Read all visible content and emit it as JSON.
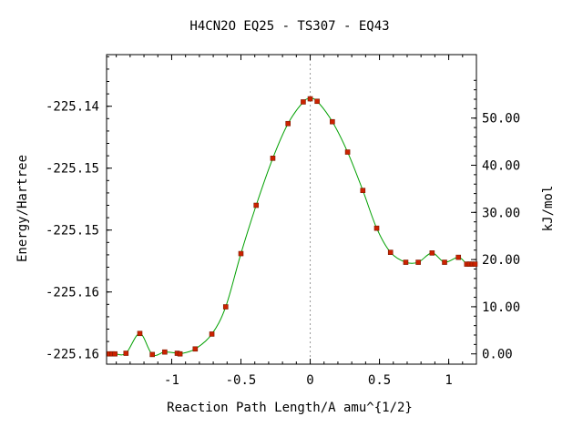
{
  "chart_data": {
    "type": "line",
    "title": "H4CN2O   EQ25 - TS307 - EQ43",
    "xlabel": "Reaction Path Length/A amu^{1/2}",
    "ylabel": "Energy/Hartree",
    "y2label": "kJ/mol",
    "xlim": [
      -1.47,
      1.2
    ],
    "ylim": [
      -225.16083,
      -225.13583
    ],
    "x_ticks": [
      {
        "value": -1,
        "label": "-1"
      },
      {
        "value": -0.5,
        "label": "-0.5"
      },
      {
        "value": 0,
        "label": "0"
      },
      {
        "value": 0.5,
        "label": "0.5"
      },
      {
        "value": 1,
        "label": "1"
      }
    ],
    "y_ticks": [
      {
        "value": -225.14,
        "label": "-225.14"
      },
      {
        "value": -225.145,
        "label": "-225.15"
      },
      {
        "value": -225.15,
        "label": "-225.15"
      },
      {
        "value": -225.155,
        "label": "-225.16"
      },
      {
        "value": -225.16,
        "label": "-225.16"
      }
    ],
    "y2_ticks": [
      {
        "value": 0,
        "label": "0.00"
      },
      {
        "value": 10,
        "label": "10.00"
      },
      {
        "value": 20,
        "label": "20.00"
      },
      {
        "value": 30,
        "label": "30.00"
      },
      {
        "value": 40,
        "label": "40.00"
      },
      {
        "value": 50,
        "label": "50.00"
      }
    ],
    "y2_zero": -225.16,
    "ts_x": 0,
    "colors": {
      "line": "#00a000",
      "marker": "#cc2200",
      "marker_edge": "#7a1a00",
      "ts_line": "#999999"
    },
    "series": [
      {
        "values": [
          {
            "x": -1.45,
            "y": -225.16
          },
          {
            "x": -1.43,
            "y": -225.16
          },
          {
            "x": -1.41,
            "y": -225.16
          },
          {
            "x": -1.33,
            "y": -225.15995
          },
          {
            "x": -1.23,
            "y": -225.15835
          },
          {
            "x": -1.14,
            "y": -225.16005
          },
          {
            "x": -1.05,
            "y": -225.15985
          },
          {
            "x": -0.96,
            "y": -225.15995
          },
          {
            "x": -0.94,
            "y": -225.16
          },
          {
            "x": -0.83,
            "y": -225.1596
          },
          {
            "x": -0.71,
            "y": -225.1584
          },
          {
            "x": -0.61,
            "y": -225.1562
          },
          {
            "x": -0.5,
            "y": -225.1519
          },
          {
            "x": -0.39,
            "y": -225.148
          },
          {
            "x": -0.27,
            "y": -225.1442
          },
          {
            "x": -0.16,
            "y": -225.1414
          },
          {
            "x": -0.05,
            "y": -225.13965
          },
          {
            "x": 0,
            "y": -225.1394
          },
          {
            "x": 0.05,
            "y": -225.1396
          },
          {
            "x": 0.16,
            "y": -225.14125
          },
          {
            "x": 0.27,
            "y": -225.1437
          },
          {
            "x": 0.38,
            "y": -225.1468
          },
          {
            "x": 0.48,
            "y": -225.14985
          },
          {
            "x": 0.58,
            "y": -225.1518
          },
          {
            "x": 0.69,
            "y": -225.1526
          },
          {
            "x": 0.78,
            "y": -225.1526
          },
          {
            "x": 0.88,
            "y": -225.15185
          },
          {
            "x": 0.97,
            "y": -225.1526
          },
          {
            "x": 1.07,
            "y": -225.1522
          },
          {
            "x": 1.13,
            "y": -225.15275
          },
          {
            "x": 1.15,
            "y": -225.15275
          },
          {
            "x": 1.17,
            "y": -225.15275
          },
          {
            "x": 1.19,
            "y": -225.15275
          }
        ]
      }
    ]
  }
}
